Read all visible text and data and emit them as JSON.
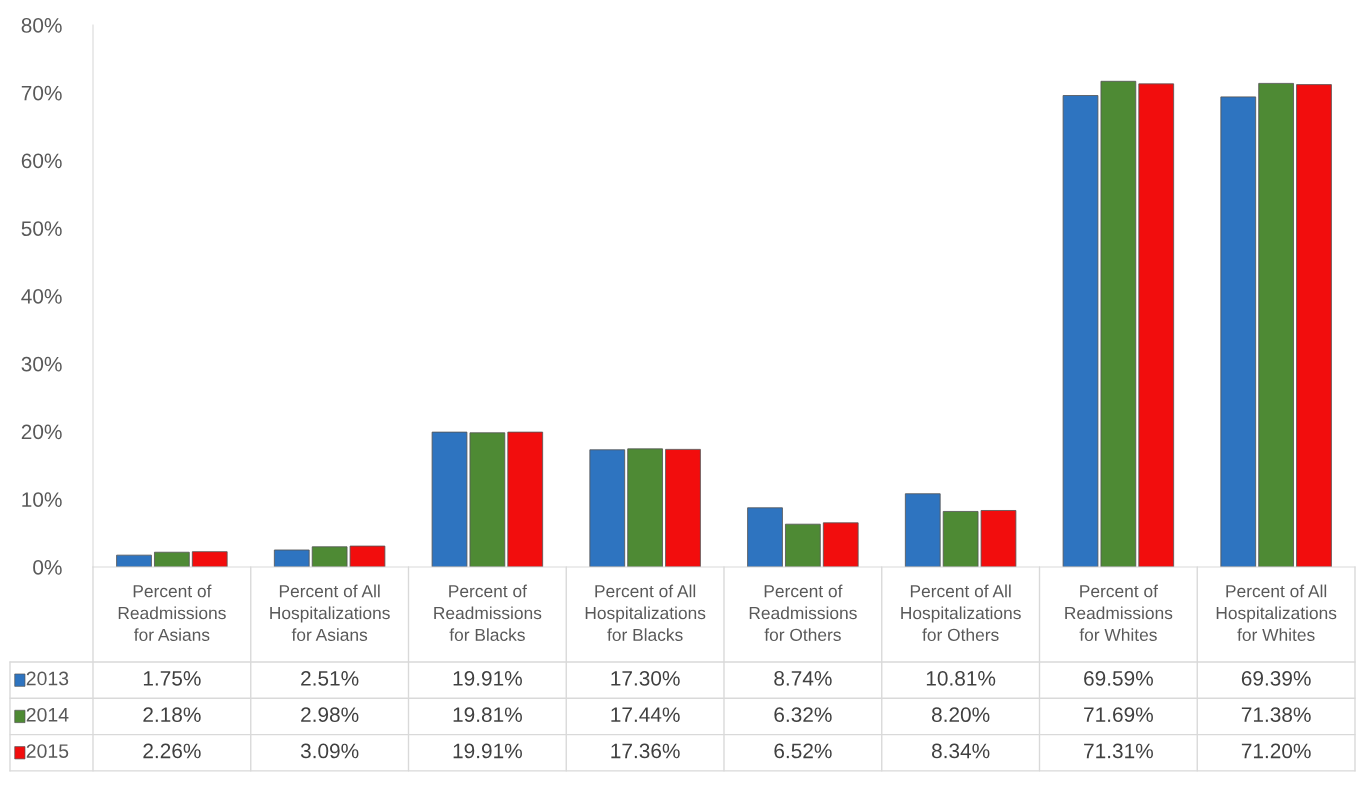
{
  "chart_data": {
    "type": "bar",
    "categories": [
      "Percent of Readmissions for Asians",
      "Percent of All Hospitalizations for Asians",
      "Percent of Readmissions for Blacks",
      "Percent of All Hospitalizations for Blacks",
      "Percent of Readmissions for Others",
      "Percent of All Hospitalizations for Others",
      "Percent of Readmissions for Whites",
      "Percent of All Hospitalizations for Whites"
    ],
    "series": [
      {
        "name": "2013",
        "color": "#2e74c0",
        "values": [
          1.75,
          2.51,
          19.91,
          17.3,
          8.74,
          10.81,
          69.59,
          69.39
        ],
        "value_labels": [
          "1.75%",
          "2.51%",
          "19.91%",
          "17.30%",
          "8.74%",
          "10.81%",
          "69.59%",
          "69.39%"
        ]
      },
      {
        "name": "2014",
        "color": "#4e8a34",
        "values": [
          2.18,
          2.98,
          19.81,
          17.44,
          6.32,
          8.2,
          71.69,
          71.38
        ],
        "value_labels": [
          "2.18%",
          "2.98%",
          "19.81%",
          "17.44%",
          "6.32%",
          "8.20%",
          "71.69%",
          "71.38%"
        ]
      },
      {
        "name": "2015",
        "color": "#f20d0d",
        "values": [
          2.26,
          3.09,
          19.91,
          17.36,
          6.52,
          8.34,
          71.31,
          71.2
        ],
        "value_labels": [
          "2.26%",
          "3.09%",
          "19.91%",
          "17.36%",
          "6.52%",
          "8.34%",
          "71.31%",
          "71.20%"
        ]
      }
    ],
    "ylim": [
      0,
      80
    ],
    "yticks": [
      {
        "value": 0,
        "label": "0%"
      },
      {
        "value": 10,
        "label": "10%"
      },
      {
        "value": 20,
        "label": "20%"
      },
      {
        "value": 30,
        "label": "30%"
      },
      {
        "value": 40,
        "label": "40%"
      },
      {
        "value": 50,
        "label": "50%"
      },
      {
        "value": 60,
        "label": "60%"
      },
      {
        "value": 70,
        "label": "70%"
      },
      {
        "value": 80,
        "label": "80%"
      }
    ],
    "grid": false,
    "legend": "bottom"
  }
}
